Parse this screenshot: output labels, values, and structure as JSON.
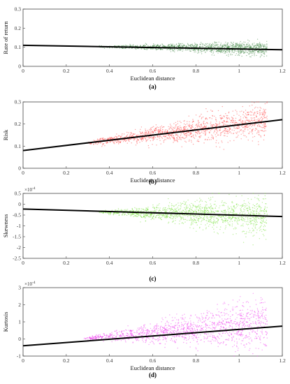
{
  "chart_data": [
    {
      "type": "scatter",
      "panel_label": "(a)",
      "xlabel": "Euclidean distance",
      "ylabel": "Rate of return",
      "xlim": [
        0,
        1.2
      ],
      "ylim": [
        0,
        0.3
      ],
      "xticks": [
        "0",
        "0.2",
        "0.4",
        "0.6",
        "0.8",
        "1",
        "1.2"
      ],
      "yticks": [
        "0",
        "0.1",
        "0.2",
        "0.3"
      ],
      "exponent_label": "",
      "point_color": "#2e7d32",
      "fit_line": {
        "x": [
          0,
          1.2
        ],
        "y": [
          0.11,
          0.087
        ]
      },
      "scatter_cloud": {
        "x_range": [
          0.35,
          1.13
        ],
        "center_start": 0.103,
        "center_end": 0.092,
        "spread_start": 0.004,
        "spread_end": 0.04
      },
      "grid": false
    },
    {
      "type": "scatter",
      "panel_label": "(b)",
      "xlabel": "Euclidean distance",
      "ylabel": "Risk",
      "xlim": [
        0,
        1.2
      ],
      "ylim": [
        0,
        0.3
      ],
      "xticks": [
        "0",
        "0.2",
        "0.4",
        "0.6",
        "0.8",
        "1",
        "1.2"
      ],
      "yticks": [
        "0",
        "0.1",
        "0.2",
        "0.3"
      ],
      "exponent_label": "",
      "point_color": "#ff2a2a",
      "fit_line": {
        "x": [
          0,
          1.2
        ],
        "y": [
          0.08,
          0.22
        ]
      },
      "scatter_cloud": {
        "x_range": [
          0.3,
          1.13
        ],
        "center_start": 0.115,
        "center_end": 0.215,
        "spread_start": 0.01,
        "spread_end": 0.09
      },
      "grid": false
    },
    {
      "type": "scatter",
      "panel_label": "(c)",
      "xlabel": "",
      "ylabel": "Skewness",
      "xlim": [
        0,
        1.2
      ],
      "ylim": [
        -2.5,
        0.5
      ],
      "xticks": [
        "0",
        "0.2",
        "0.4",
        "0.6",
        "0.8",
        "1",
        "1.2"
      ],
      "yticks": [
        "-2.5",
        "-2",
        "-1.5",
        "-1",
        "-0.5",
        "0",
        "0.5"
      ],
      "exponent_label": "×10",
      "exponent_power": "-4",
      "point_color": "#66dd22",
      "fit_line": {
        "x": [
          0,
          1.2
        ],
        "y": [
          -0.22,
          -0.57
        ]
      },
      "scatter_cloud": {
        "x_range": [
          0.35,
          1.13
        ],
        "center_start": -0.35,
        "center_end": -0.55,
        "spread_start": 0.05,
        "spread_end": 1.05
      },
      "grid": false
    },
    {
      "type": "scatter",
      "panel_label": "(d)",
      "xlabel": "Euclidean distance",
      "ylabel": "Kurtosis",
      "xlim": [
        0,
        1.2
      ],
      "ylim": [
        -1,
        3
      ],
      "xticks": [
        "0",
        "0.2",
        "0.4",
        "0.6",
        "0.8",
        "1",
        "1.2"
      ],
      "yticks": [
        "-1",
        "0",
        "1",
        "2",
        "3"
      ],
      "exponent_label": "×10",
      "exponent_power": "-4",
      "point_color": "#ee22ee",
      "fit_line": {
        "x": [
          0,
          1.2
        ],
        "y": [
          -0.4,
          0.75
        ]
      },
      "scatter_cloud": {
        "x_range": [
          0.28,
          1.13
        ],
        "center_start": 0.02,
        "center_end": 0.9,
        "spread_start": 0.05,
        "spread_end": 1.6
      },
      "grid": false
    }
  ]
}
